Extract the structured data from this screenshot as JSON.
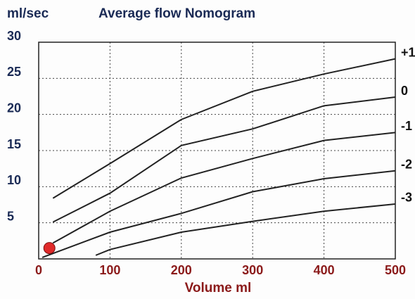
{
  "chart_data": {
    "type": "line",
    "title": "Average flow Nomogram",
    "y_label": "ml/sec",
    "x_label": "Volume ml",
    "xlim": [
      0,
      500
    ],
    "xticks": [
      0,
      100,
      200,
      300,
      400,
      500
    ],
    "ylim": [
      0,
      30
    ],
    "yticks": [
      5,
      10,
      15,
      20,
      25,
      30
    ],
    "grid": true,
    "series": [
      {
        "name": "+1",
        "color": "#222222",
        "x": [
          20,
          100,
          200,
          300,
          400,
          500
        ],
        "values": [
          8.4,
          13.2,
          19.3,
          23.2,
          25.6,
          27.7
        ]
      },
      {
        "name": "0",
        "color": "#222222",
        "x": [
          20,
          100,
          200,
          300,
          400,
          500
        ],
        "values": [
          5.1,
          9.1,
          15.7,
          18,
          21.2,
          22.4
        ]
      },
      {
        "name": "-1",
        "color": "#222222",
        "x": [
          20,
          100,
          200,
          300,
          400,
          500
        ],
        "values": [
          2.2,
          6.6,
          11.2,
          13.9,
          16.4,
          17.5
        ]
      },
      {
        "name": "-2",
        "color": "#222222",
        "x": [
          5,
          100,
          200,
          300,
          400,
          500
        ],
        "values": [
          0.2,
          3.7,
          6.3,
          9.3,
          11.1,
          12.2
        ]
      },
      {
        "name": "-3",
        "color": "#222222",
        "x": [
          80,
          100,
          200,
          300,
          400,
          500
        ],
        "values": [
          0.5,
          1.3,
          3.7,
          5.2,
          6.6,
          7.6
        ]
      }
    ],
    "marker": {
      "x": 15,
      "y": 1.5,
      "color": "#e02a2a"
    }
  }
}
